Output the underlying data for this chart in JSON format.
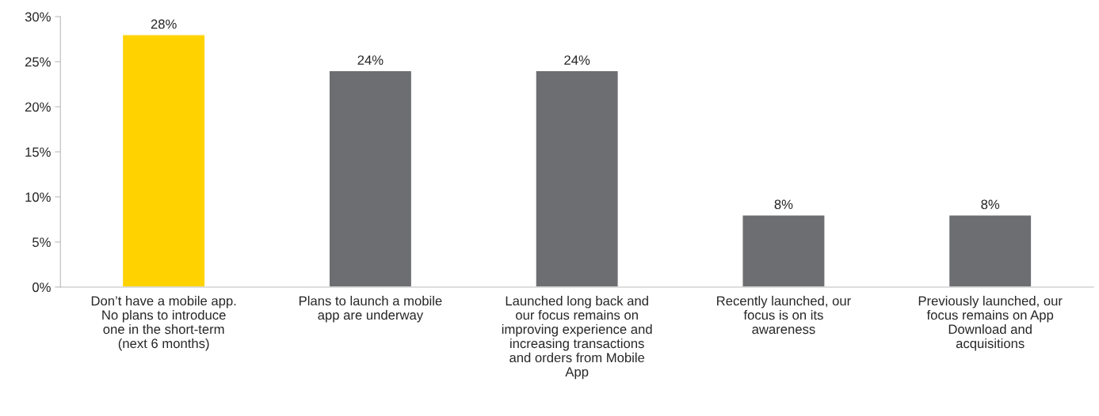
{
  "chart_data": {
    "type": "bar",
    "categories": [
      "Don’t have a mobile app. No plans to introduce one in the short-term (next 6 months)",
      "Plans to launch a mobile app are underway",
      "Launched long back and our focus remains on improving experience and increasing transactions and orders from Mobile App",
      "Recently launched, our focus is on its awareness",
      "Previously launched, our focus remains on App Download and acquisitions"
    ],
    "values": [
      28,
      24,
      24,
      8,
      8
    ],
    "colors": [
      "#ffd200",
      "#6d6e71",
      "#6d6e71",
      "#6d6e71",
      "#6d6e71"
    ],
    "value_labels": [
      "28%",
      "24%",
      "24%",
      "8%",
      "8%"
    ],
    "ylim": [
      0,
      30
    ],
    "yticks": [
      {
        "value": 0,
        "label": "0%"
      },
      {
        "value": 5,
        "label": "5%"
      },
      {
        "value": 10,
        "label": "10%"
      },
      {
        "value": 15,
        "label": "15%"
      },
      {
        "value": 20,
        "label": "20%"
      },
      {
        "value": 25,
        "label": "25%"
      },
      {
        "value": 30,
        "label": "30%"
      }
    ],
    "grid": false,
    "legend": false
  }
}
